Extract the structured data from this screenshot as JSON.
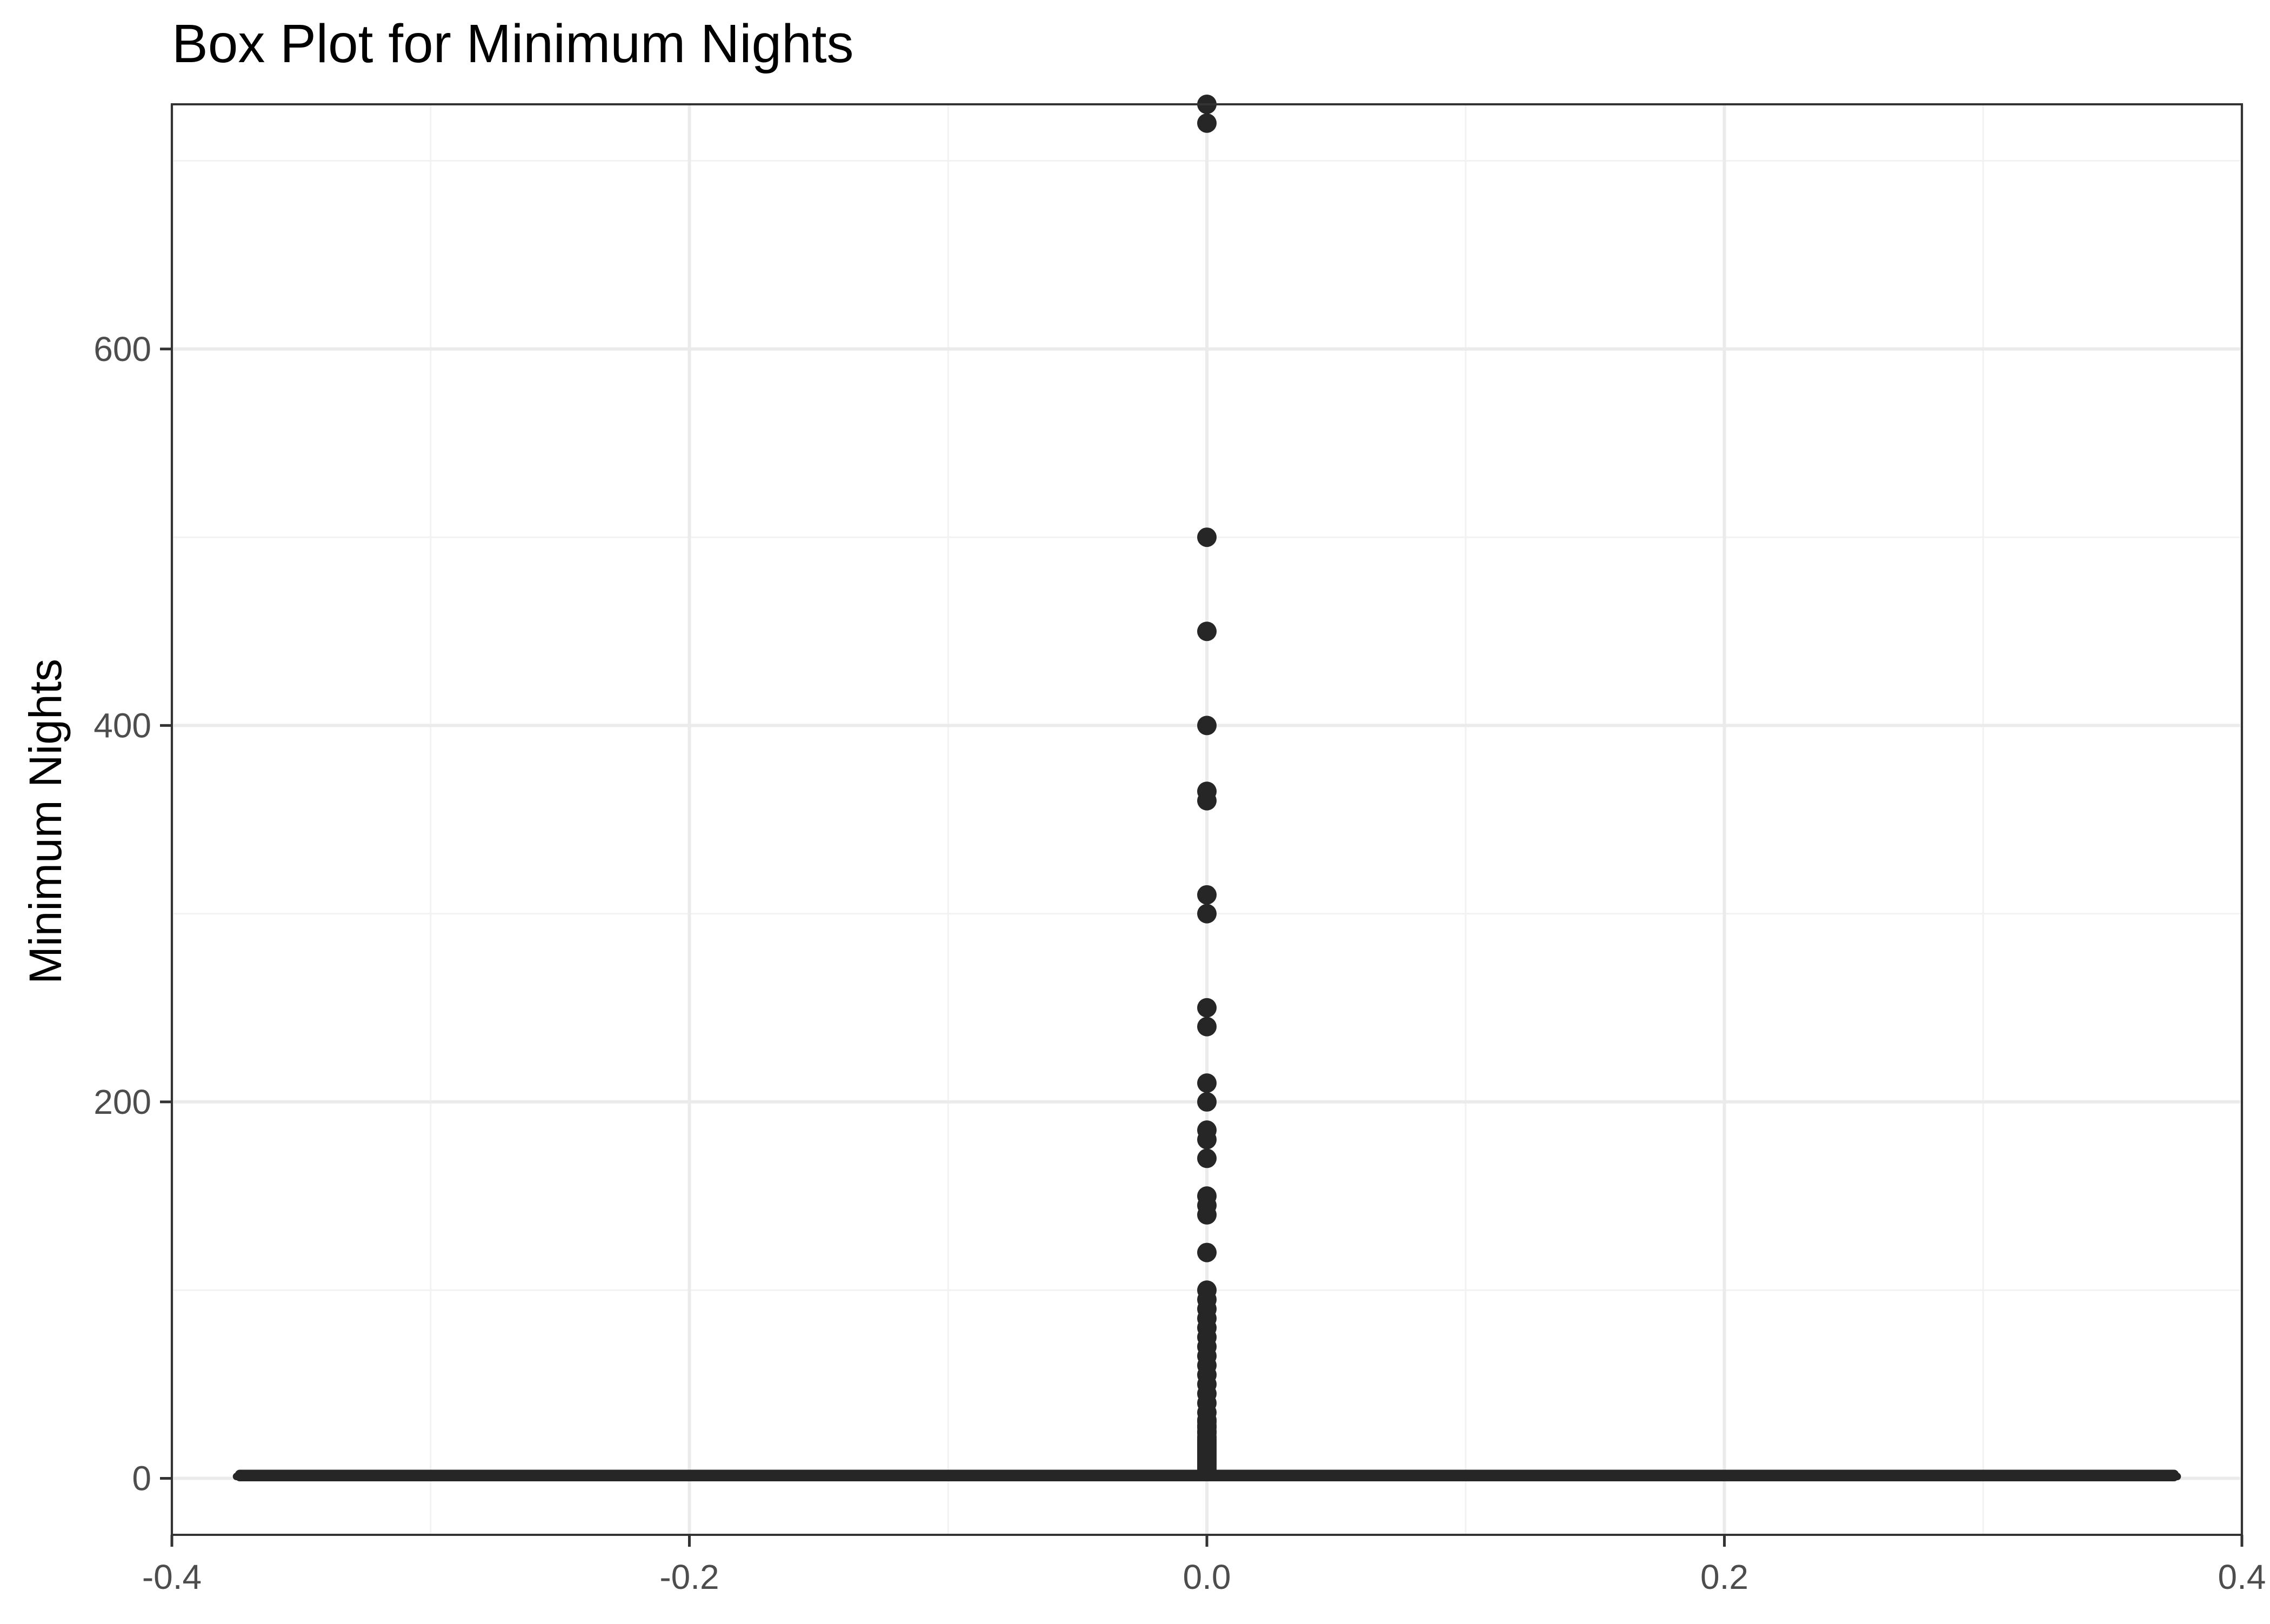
{
  "chart_data": {
    "type": "box",
    "title": "Box Plot for Minimum Nights",
    "xlabel": "",
    "ylabel": "Minimum Nights",
    "xlim": [
      -0.4,
      0.4
    ],
    "ylim": [
      -30,
      730
    ],
    "x_ticks": [
      -0.4,
      -0.2,
      0.0,
      0.2,
      0.4
    ],
    "x_tick_labels": [
      "-0.4",
      "-0.2",
      "0.0",
      "0.2",
      "0.4"
    ],
    "y_ticks": [
      0,
      200,
      400,
      600
    ],
    "y_tick_labels": [
      "0",
      "200",
      "400",
      "600"
    ],
    "grid": true,
    "box": {
      "x": 0.0,
      "xmin": -0.375,
      "xmax": 0.375,
      "q1": 1,
      "median": 1,
      "q3": 2,
      "whisker_low": 1,
      "whisker_high": 3
    },
    "outliers": [
      730,
      720,
      500,
      450,
      400,
      365,
      360,
      310,
      300,
      250,
      240,
      210,
      200,
      185,
      180,
      170,
      150,
      145,
      140,
      120,
      100,
      95,
      90,
      85,
      80,
      75,
      70,
      65,
      60,
      55,
      50,
      45,
      40,
      35,
      31,
      30,
      28,
      27,
      25,
      24,
      22,
      21,
      20,
      19,
      18,
      17,
      16,
      15,
      14,
      13,
      12,
      11,
      10,
      9,
      8,
      7,
      6,
      5,
      4
    ],
    "colors": {
      "points": "#262626",
      "box": "#262626",
      "grid_major": "#ebebeb",
      "grid_minor": "#f2f2f2",
      "panel_border": "#333333",
      "tick_text": "#4d4d4d"
    }
  }
}
